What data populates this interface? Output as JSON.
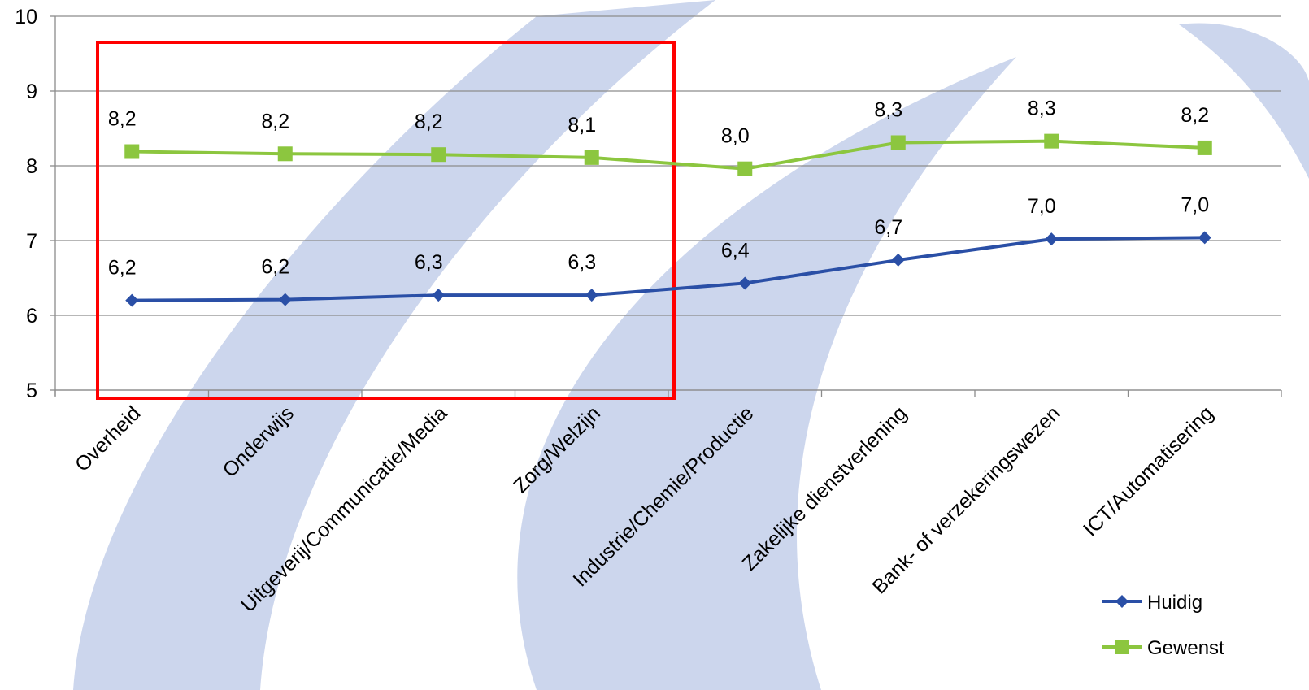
{
  "chart_data": {
    "type": "line",
    "categories": [
      "Overheid",
      "Onderwijs",
      "Uitgeverij/Communicatie/Media",
      "Zorg/Welzijn",
      "Industrie/Chemie/Productie",
      "Zakelijke dienstverlening",
      "Bank- of verzekeringswezen",
      "ICT/Automatisering"
    ],
    "series": [
      {
        "name": "Huidig",
        "values": [
          6.2,
          6.21,
          6.27,
          6.27,
          6.43,
          6.74,
          7.02,
          7.04
        ],
        "labels": [
          "6,2",
          "6,2",
          "6,3",
          "6,3",
          "6,4",
          "6,7",
          "7,0",
          "7,0"
        ],
        "color": "#2a4fa6",
        "marker": "diamond"
      },
      {
        "name": "Gewenst",
        "values": [
          8.19,
          8.16,
          8.15,
          8.11,
          7.96,
          8.31,
          8.33,
          8.24
        ],
        "labels": [
          "8,2",
          "8,2",
          "8,2",
          "8,1",
          "8,0",
          "8,3",
          "8,3",
          "8,2"
        ],
        "color": "#8cc63f",
        "marker": "square"
      }
    ],
    "ylim": [
      5,
      10
    ],
    "yticks": [
      "5",
      "6",
      "7",
      "8",
      "9",
      "10"
    ],
    "grid": true,
    "legend_position": "bottom-right",
    "highlight": {
      "shape": "rectangle",
      "color": "#ff0000",
      "covers_categories": [
        "Overheid",
        "Onderwijs",
        "Uitgeverij/Communicatie/Media",
        "Zorg/Welzijn"
      ]
    }
  }
}
